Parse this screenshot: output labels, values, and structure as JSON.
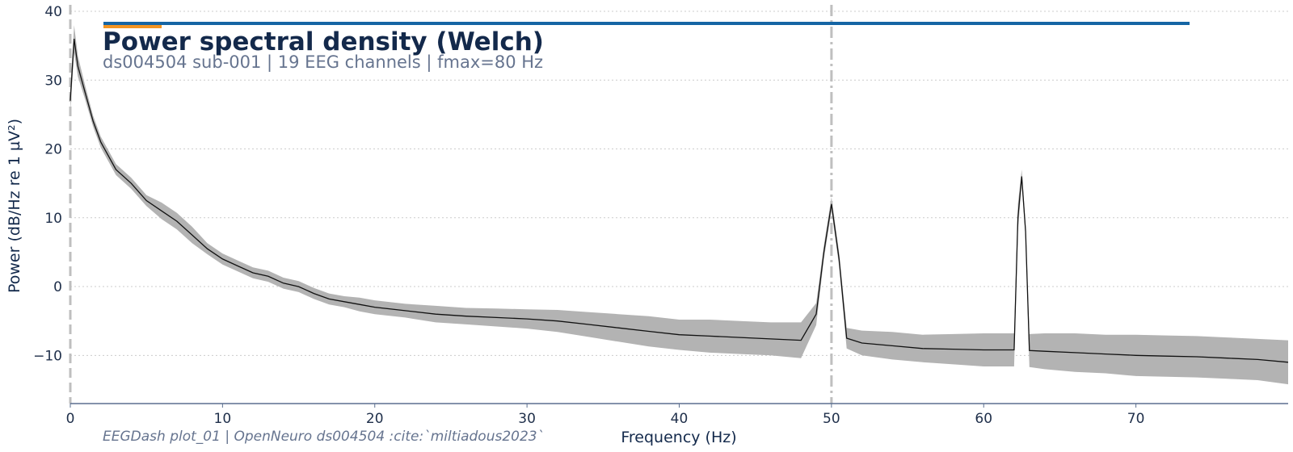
{
  "chart_data": {
    "type": "line",
    "title": "Power spectral density (Welch)",
    "subtitle": "ds004504 sub-001 | 19 EEG channels | fmax=80 Hz",
    "xlabel": "Frequency (Hz)",
    "ylabel": "Power (dB/Hz re 1 µV²)",
    "footer": "EEGDash plot_01 | OpenNeuro ds004504 :cite:`miltiadous2023`",
    "xlim": [
      0,
      80
    ],
    "ylim": [
      -17,
      40
    ],
    "x_ticks": [
      0,
      10,
      20,
      30,
      40,
      50,
      60,
      70
    ],
    "x_tick_labels": [
      "0",
      "10",
      "20",
      "30",
      "40",
      "50",
      "60",
      "70"
    ],
    "y_ticks": [
      40,
      30,
      20,
      10,
      0,
      -10
    ],
    "y_tick_labels": [
      "40",
      "30",
      "20",
      "10",
      "0",
      "−10"
    ],
    "grid": "horizontal dotted",
    "vlines": [
      {
        "x": 0,
        "style": "dashed",
        "color": "#bfbfbf"
      },
      {
        "x": 50,
        "style": "dashdot",
        "color": "#bfbfbf"
      }
    ],
    "series": [
      {
        "x": [
          0,
          0.25,
          0.5,
          1,
          1.5,
          2,
          3,
          4,
          5,
          6,
          7,
          8,
          9,
          10,
          11,
          12,
          13,
          14,
          15,
          16,
          17,
          18,
          19,
          20,
          22,
          24,
          26,
          28,
          30,
          32,
          34,
          36,
          38,
          40,
          42,
          44,
          46,
          48,
          49,
          49.5,
          50,
          50.5,
          51,
          52,
          54,
          56,
          58,
          60,
          61,
          62,
          62.25,
          62.5,
          62.75,
          63,
          64,
          66,
          68,
          70,
          72,
          74,
          76,
          78,
          80
        ],
        "values": [
          27,
          36,
          32,
          28,
          24,
          21,
          17,
          15,
          12.5,
          11,
          9.5,
          7.5,
          5.5,
          4,
          3,
          2,
          1.5,
          0.5,
          0,
          -1,
          -1.8,
          -2.2,
          -2.6,
          -3,
          -3.5,
          -4,
          -4.3,
          -4.5,
          -4.7,
          -5,
          -5.5,
          -6,
          -6.5,
          -7,
          -7.2,
          -7.4,
          -7.6,
          -7.8,
          -4,
          5,
          12,
          4,
          -7.5,
          -8.2,
          -8.6,
          -9,
          -9.1,
          -9.2,
          -9.2,
          -9.2,
          10,
          16,
          8,
          -9.3,
          -9.4,
          -9.6,
          -9.8,
          -10,
          -10.1,
          -10.2,
          -10.4,
          -10.6,
          -11
        ],
        "band_width": [
          1.5,
          2,
          1.5,
          1,
          0.8,
          0.8,
          0.8,
          0.8,
          0.8,
          1.2,
          1.2,
          1.2,
          0.8,
          0.8,
          0.8,
          0.8,
          0.8,
          0.8,
          0.8,
          0.8,
          0.8,
          0.8,
          1,
          1,
          1,
          1.2,
          1.2,
          1.3,
          1.4,
          1.6,
          1.8,
          2,
          2.2,
          2.2,
          2.4,
          2.4,
          2.4,
          2.6,
          1.6,
          1,
          1,
          1,
          1.5,
          1.8,
          2,
          2,
          2.2,
          2.4,
          2.4,
          2.4,
          2,
          1,
          1,
          2.4,
          2.6,
          2.8,
          2.8,
          3,
          3,
          3,
          3,
          3,
          3.2
        ]
      }
    ]
  }
}
